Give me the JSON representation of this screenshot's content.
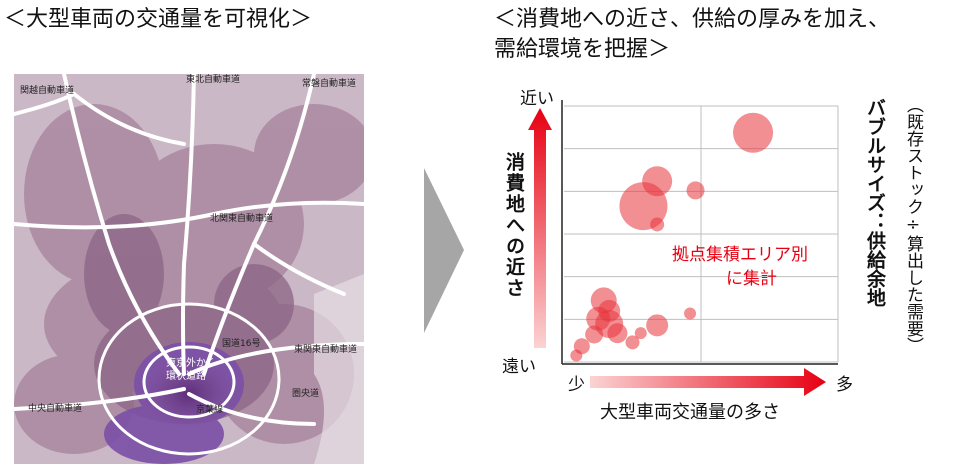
{
  "left_title": "＜大型車両の交通量を可視化＞",
  "right_title_line1": "＜消費地への近さ、供給の厚みを加え、",
  "right_title_line2": "需給環境を把握＞",
  "map": {
    "labels": {
      "kanetsu": "関越自動車道",
      "tohoku": "東北自動車道",
      "joban": "常磐自動車道",
      "kitakanto": "北関東自動車道",
      "route16": "国道16号",
      "higashikanto": "東関東自動車道",
      "chuo": "中央自動車道",
      "gaikan": "東京外かく",
      "gaikan2": "環状道路",
      "keiyo": "京葉線",
      "tateyama": "圏央道"
    }
  },
  "chart_data": {
    "type": "scatter",
    "title": "",
    "ylabel": "消費地への近さ",
    "y_top_label": "近い",
    "y_bottom_label": "遠い",
    "xlabel": "大型車両交通量の多さ",
    "x_left_label": "少",
    "x_right_label": "多",
    "bubble_note": "バブルサイズ：供給余地",
    "bubble_note_sub": "（既存ストック÷算出した需要）",
    "annotation_line1": "拠点集積エリア別",
    "annotation_line2": "に集計",
    "xlim": [
      0,
      1
    ],
    "ylim": [
      0,
      1
    ],
    "grid": true,
    "points": [
      {
        "x": 0.69,
        "y": 0.875,
        "size": 20
      },
      {
        "x": 0.34,
        "y": 0.69,
        "size": 15
      },
      {
        "x": 0.48,
        "y": 0.655,
        "size": 9
      },
      {
        "x": 0.29,
        "y": 0.595,
        "size": 24
      },
      {
        "x": 0.34,
        "y": 0.525,
        "size": 7
      },
      {
        "x": 0.145,
        "y": 0.235,
        "size": 13
      },
      {
        "x": 0.165,
        "y": 0.195,
        "size": 11
      },
      {
        "x": 0.125,
        "y": 0.165,
        "size": 12
      },
      {
        "x": 0.165,
        "y": 0.145,
        "size": 14
      },
      {
        "x": 0.195,
        "y": 0.11,
        "size": 10
      },
      {
        "x": 0.34,
        "y": 0.14,
        "size": 11
      },
      {
        "x": 0.46,
        "y": 0.185,
        "size": 6
      },
      {
        "x": 0.11,
        "y": 0.105,
        "size": 9
      },
      {
        "x": 0.065,
        "y": 0.06,
        "size": 8
      },
      {
        "x": 0.045,
        "y": 0.025,
        "size": 6
      },
      {
        "x": 0.25,
        "y": 0.075,
        "size": 7
      },
      {
        "x": 0.28,
        "y": 0.11,
        "size": 6
      }
    ]
  },
  "colors": {
    "bubble": "#e8333a",
    "accent_red": "#e60012",
    "grid": "#bfbfbf",
    "arrow_gray": "#a6a6a6",
    "map_bg": "#c9b5c3"
  }
}
